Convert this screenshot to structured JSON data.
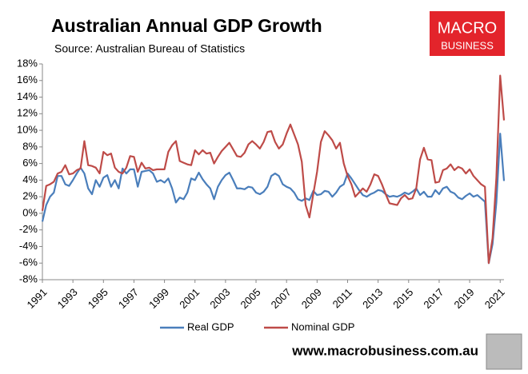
{
  "chart_data": {
    "type": "line",
    "title": "Australian Annual GDP Growth",
    "subtitle": "Source: Australian Bureau of Statistics",
    "categories": [
      "1991",
      null,
      null,
      null,
      null,
      null,
      null,
      null,
      "1993",
      null,
      null,
      null,
      null,
      null,
      null,
      null,
      "1995",
      null,
      null,
      null,
      null,
      null,
      null,
      null,
      "1997",
      null,
      null,
      null,
      null,
      null,
      null,
      null,
      "1999",
      null,
      null,
      null,
      null,
      null,
      null,
      null,
      "2001",
      null,
      null,
      null,
      null,
      null,
      null,
      null,
      "2003",
      null,
      null,
      null,
      null,
      null,
      null,
      null,
      "2005",
      null,
      null,
      null,
      null,
      null,
      null,
      null,
      "2007",
      null,
      null,
      null,
      null,
      null,
      null,
      null,
      "2009",
      null,
      null,
      null,
      null,
      null,
      null,
      null,
      "2011",
      null,
      null,
      null,
      null,
      null,
      null,
      null,
      "2013",
      null,
      null,
      null,
      null,
      null,
      null,
      null,
      "2015",
      null,
      null,
      null,
      null,
      null,
      null,
      null,
      "2017",
      null,
      null,
      null,
      null,
      null,
      null,
      null,
      "2019",
      null,
      null,
      null,
      null,
      null,
      null,
      null,
      "2021",
      null
    ],
    "series": [
      {
        "name": "Real GDP",
        "color": "#4a7ebb",
        "values": [
          -1.0,
          1.0,
          2.0,
          2.5,
          4.5,
          4.5,
          3.5,
          3.3,
          4.0,
          4.8,
          5.5,
          4.8,
          3.0,
          2.3,
          4.0,
          3.2,
          4.3,
          4.6,
          3.2,
          4.0,
          3.0,
          5.4,
          4.8,
          5.3,
          5.3,
          3.2,
          5.0,
          5.1,
          5.2,
          4.8,
          3.8,
          4.0,
          3.7,
          4.2,
          3.0,
          1.3,
          1.9,
          1.7,
          2.5,
          4.2,
          4.0,
          4.9,
          4.1,
          3.5,
          3.0,
          1.7,
          3.2,
          4.0,
          4.6,
          4.9,
          4.0,
          3.0,
          3.0,
          2.9,
          3.2,
          3.1,
          2.5,
          2.3,
          2.6,
          3.2,
          4.5,
          4.8,
          4.5,
          3.5,
          3.2,
          3.0,
          2.5,
          1.7,
          1.5,
          1.8,
          1.6,
          2.7,
          2.2,
          2.3,
          2.7,
          2.6,
          2.0,
          2.5,
          3.2,
          3.5,
          4.8,
          4.2,
          3.5,
          2.8,
          2.2,
          2.0,
          2.3,
          2.5,
          2.8,
          2.7,
          2.3,
          2.0,
          2.1,
          2.0,
          2.2,
          2.5,
          2.3,
          2.6,
          3.0,
          2.2,
          2.6,
          2.0,
          2.0,
          2.8,
          2.3,
          3.0,
          3.2,
          2.6,
          2.4,
          1.9,
          1.7,
          2.1,
          2.4,
          2.0,
          2.2,
          1.8,
          1.4,
          -6.0,
          -3.7,
          1.3,
          9.6,
          3.9
        ]
      },
      {
        "name": "Nominal GDP",
        "color": "#be4b48",
        "values": [
          0.3,
          3.3,
          3.5,
          3.8,
          4.8,
          5.0,
          5.8,
          4.7,
          4.8,
          5.2,
          5.4,
          8.7,
          5.8,
          5.7,
          5.5,
          4.8,
          7.4,
          7.0,
          7.2,
          5.5,
          5.0,
          4.8,
          5.5,
          6.9,
          6.8,
          5.0,
          6.1,
          5.4,
          5.5,
          5.2,
          5.3,
          5.3,
          5.3,
          7.4,
          8.2,
          8.7,
          6.3,
          6.1,
          5.9,
          5.8,
          7.6,
          7.1,
          7.6,
          7.2,
          7.3,
          6.0,
          6.8,
          7.5,
          8.0,
          8.5,
          7.7,
          6.9,
          6.8,
          7.3,
          8.3,
          8.7,
          8.3,
          7.8,
          8.6,
          9.8,
          9.9,
          8.6,
          7.8,
          8.3,
          9.6,
          10.7,
          9.5,
          8.3,
          6.2,
          1.0,
          -0.5,
          2.3,
          5.0,
          8.6,
          9.9,
          9.4,
          8.8,
          7.8,
          8.5,
          6.0,
          4.5,
          3.5,
          2.0,
          2.5,
          3.0,
          2.6,
          3.5,
          4.7,
          4.5,
          3.5,
          2.3,
          1.2,
          1.1,
          1.0,
          1.8,
          2.2,
          1.7,
          1.8,
          3.0,
          6.5,
          7.9,
          6.5,
          6.4,
          3.7,
          3.8,
          5.2,
          5.4,
          5.9,
          5.2,
          5.6,
          5.4,
          4.8,
          5.3,
          4.5,
          4.0,
          3.5,
          3.2,
          -6.0,
          -3.0,
          4.3,
          16.6,
          11.2
        ]
      }
    ],
    "ylim": [
      -8,
      18
    ],
    "yticks": [
      {
        "value": -8,
        "label": "-8%"
      },
      {
        "value": -6,
        "label": "-6%"
      },
      {
        "value": -4,
        "label": "-4%"
      },
      {
        "value": -2,
        "label": "-2%"
      },
      {
        "value": 0,
        "label": "0%"
      },
      {
        "value": 2,
        "label": "2%"
      },
      {
        "value": 4,
        "label": "4%"
      },
      {
        "value": 6,
        "label": "6%"
      },
      {
        "value": 8,
        "label": "8%"
      },
      {
        "value": 10,
        "label": "10%"
      },
      {
        "value": 12,
        "label": "12%"
      },
      {
        "value": 14,
        "label": "14%"
      },
      {
        "value": 16,
        "label": "16%"
      },
      {
        "value": 18,
        "label": "18%"
      }
    ],
    "grid": false,
    "legend": "bottom"
  },
  "branding": {
    "logo_top": "MACRO",
    "logo_bottom": "BUSINESS",
    "url": "www.macrobusiness.com.au"
  }
}
